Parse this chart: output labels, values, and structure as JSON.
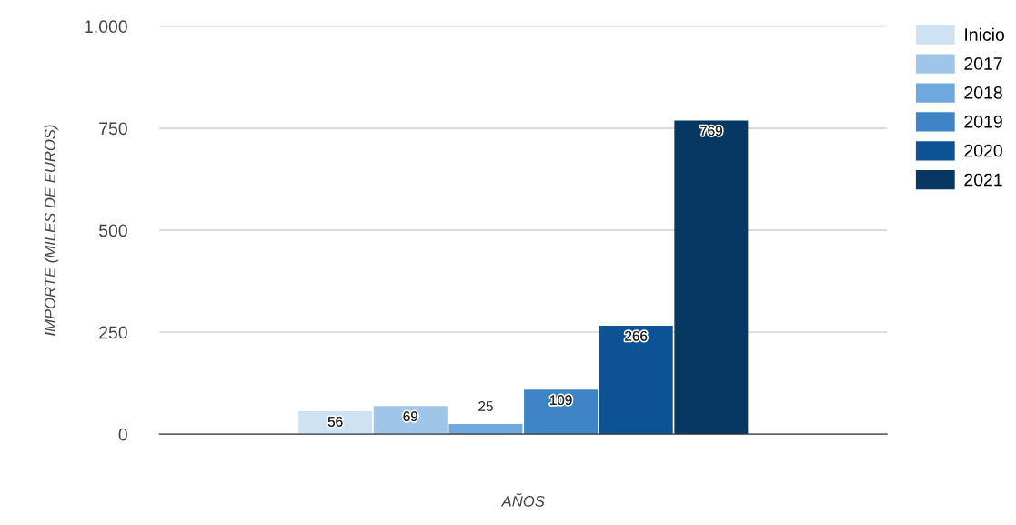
{
  "chart_data": {
    "type": "bar",
    "categories": [
      null
    ],
    "series": [
      {
        "name": "Inicio",
        "color": "#cfe2f3",
        "values": [
          56
        ]
      },
      {
        "name": "2017",
        "color": "#9fc5e8",
        "values": [
          69
        ]
      },
      {
        "name": "2018",
        "color": "#6fa8dc",
        "values": [
          25
        ]
      },
      {
        "name": "2019",
        "color": "#3d85c6",
        "values": [
          109
        ]
      },
      {
        "name": "2020",
        "color": "#0b5394",
        "values": [
          266
        ]
      },
      {
        "name": "2021",
        "color": "#073763",
        "values": [
          769
        ]
      }
    ],
    "xlabel": "AÑOS",
    "ylabel": "IMPORTE (MILES DE EUROS)",
    "ylim": [
      0,
      1000
    ],
    "yticks": [
      0,
      250,
      500,
      750,
      {
        "value": 1000,
        "label": "1.000"
      }
    ],
    "grid": "y",
    "legend": "top right",
    "data_labels": true
  }
}
